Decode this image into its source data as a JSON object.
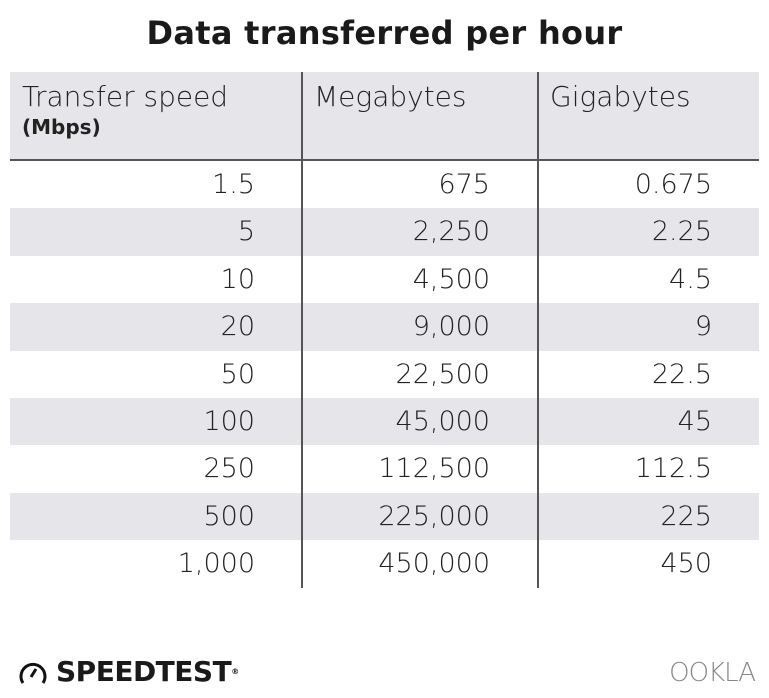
{
  "chart_data": {
    "type": "table",
    "title": "Data transferred per hour",
    "columns": [
      {
        "label": "Transfer speed",
        "sublabel": "(Mbps)"
      },
      {
        "label": "Megabytes"
      },
      {
        "label": "Gigabytes"
      }
    ],
    "rows": [
      [
        "1.5",
        "675",
        "0.675"
      ],
      [
        "5",
        "2,250",
        "2.25"
      ],
      [
        "10",
        "4,500",
        "4.5"
      ],
      [
        "20",
        "9,000",
        "9"
      ],
      [
        "50",
        "22,500",
        "22.5"
      ],
      [
        "100",
        "45,000",
        "45"
      ],
      [
        "250",
        "112,500",
        "112.5"
      ],
      [
        "500",
        "225,000",
        "225"
      ],
      [
        "1,000",
        "450,000",
        "450"
      ]
    ],
    "colors": {
      "stripe": "#e6e6ea",
      "divider": "#555555"
    }
  },
  "footer": {
    "brand": "SPEEDTEST",
    "brand_icon": "speedometer-icon",
    "partner": "OOKLA"
  }
}
